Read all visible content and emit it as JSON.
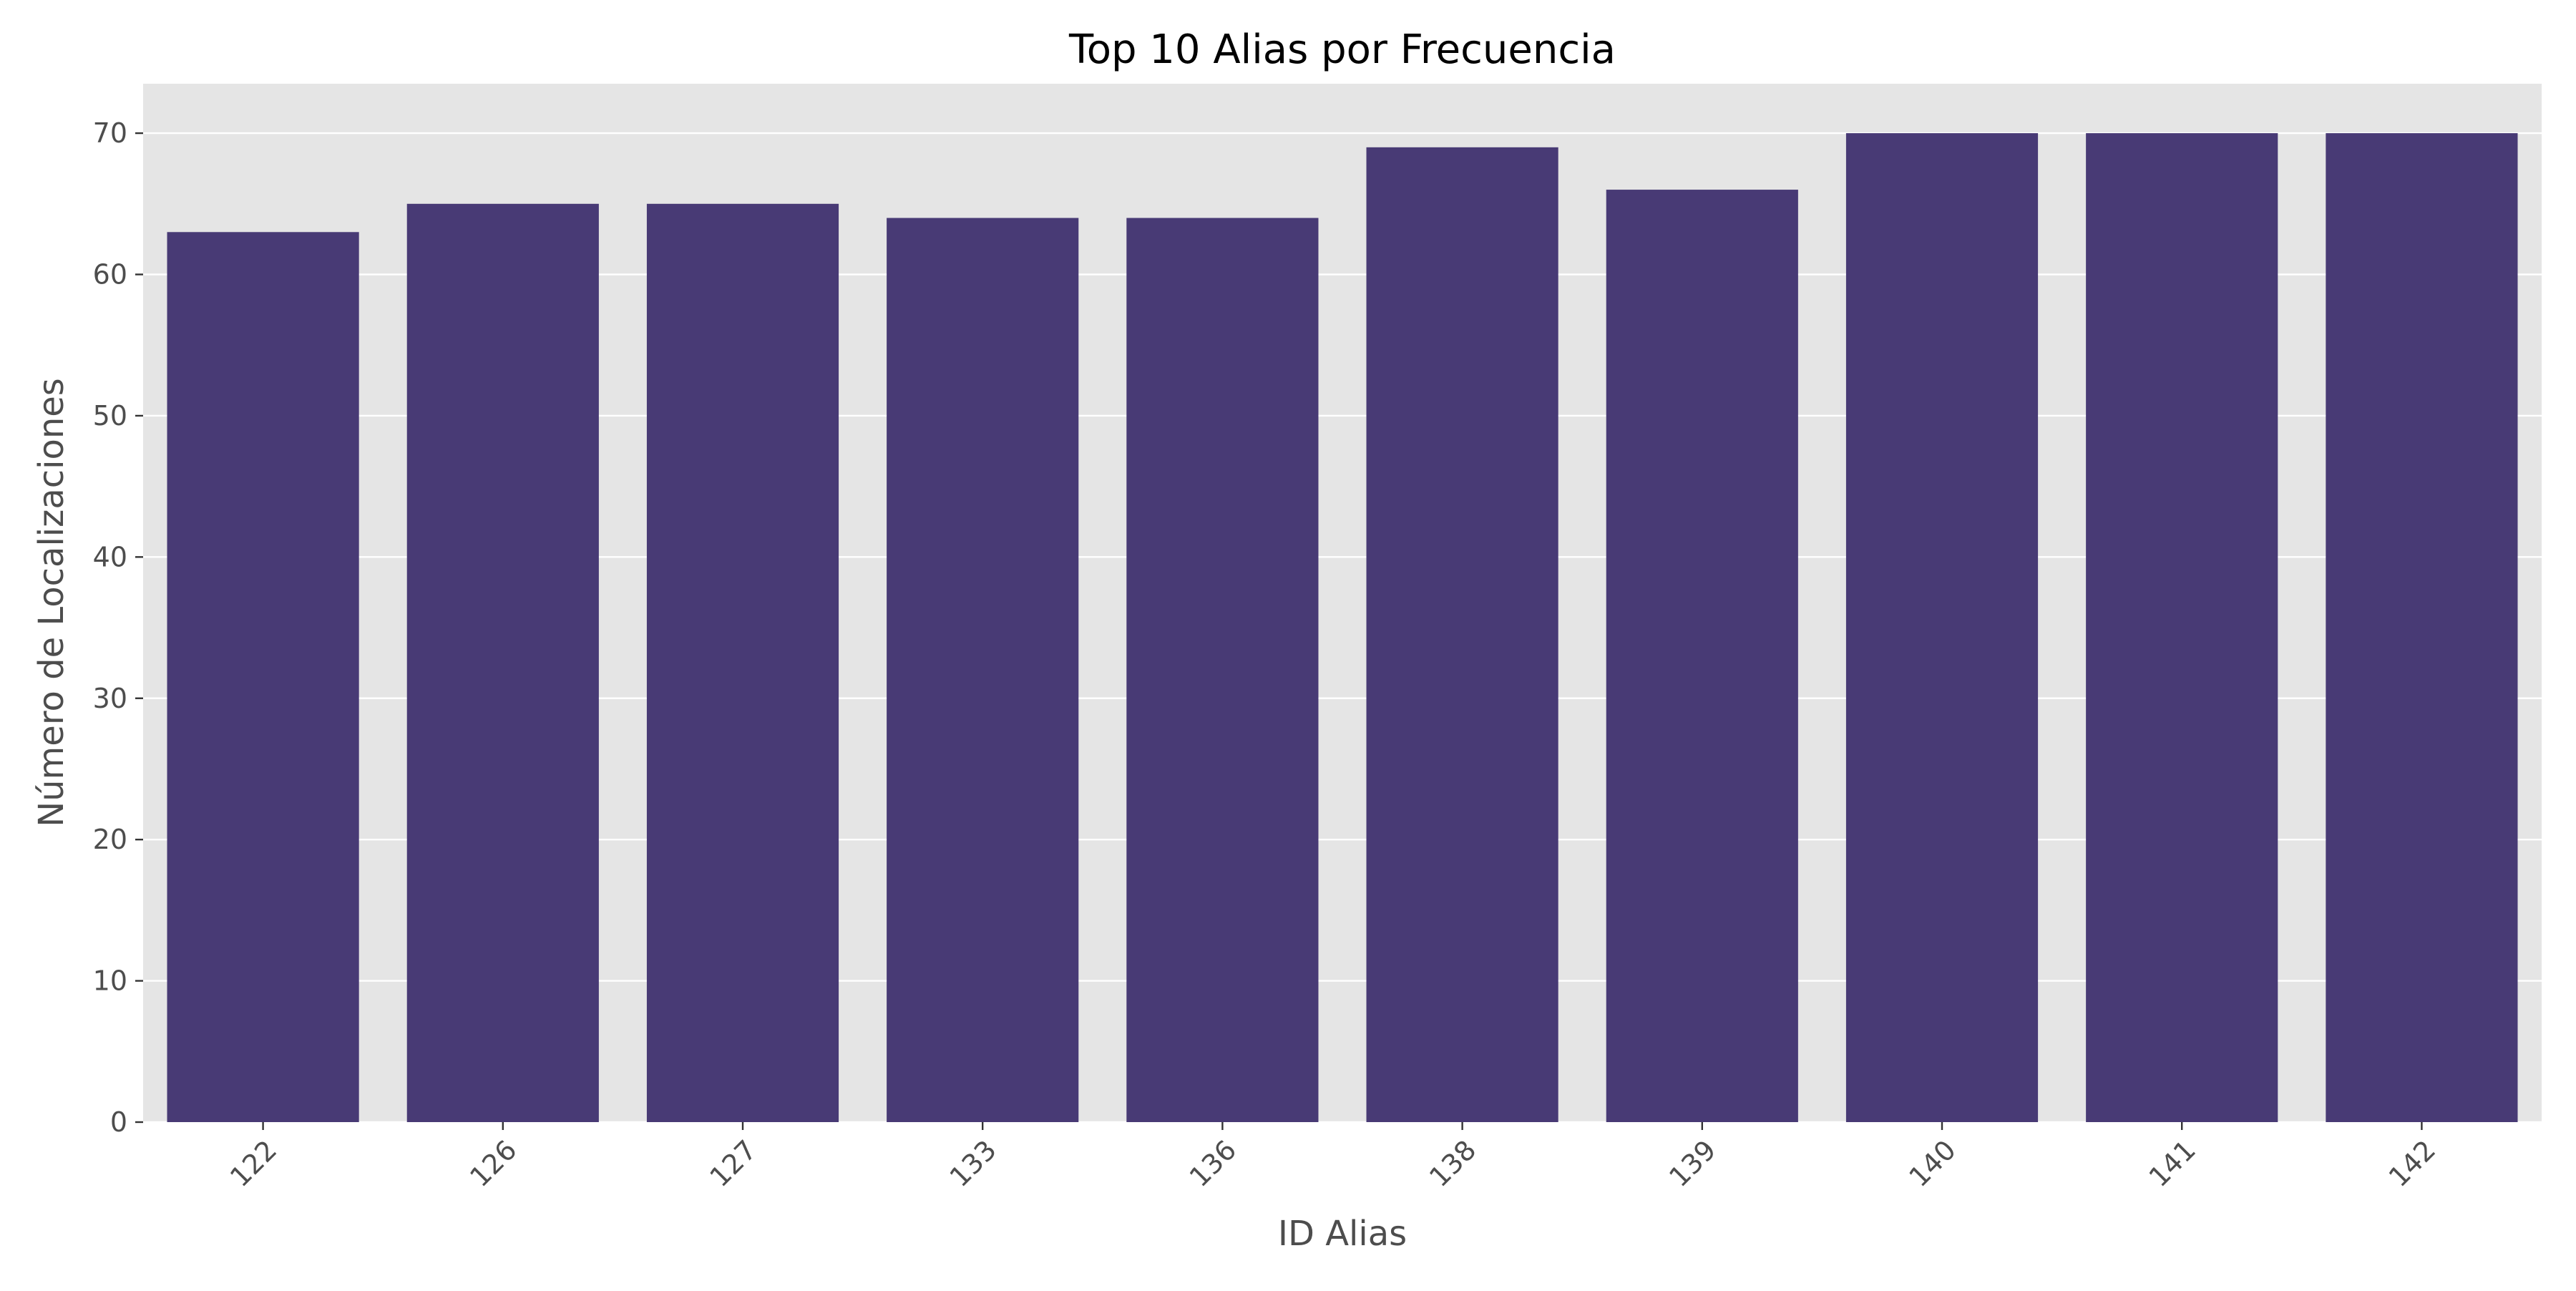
{
  "chart_data": {
    "type": "bar",
    "title": "Top 10 Alias por Frecuencia",
    "xlabel": "ID Alias",
    "ylabel": "Número de Localizaciones",
    "categories": [
      "122",
      "126",
      "127",
      "133",
      "136",
      "138",
      "139",
      "140",
      "141",
      "142"
    ],
    "values": [
      63,
      65,
      65,
      64,
      64,
      69,
      66,
      70,
      70,
      70
    ],
    "ylim": [
      0,
      73.5
    ],
    "yticks": [
      0,
      10,
      20,
      30,
      40,
      50,
      60,
      70
    ],
    "x_tick_rotation": 45,
    "grid": true,
    "legend": "none",
    "colors": {
      "bar": "#483a75",
      "plot_background": "#e5e5e5",
      "grid": "#ffffff",
      "text": "#4d4d4d",
      "title": "#000000"
    }
  }
}
